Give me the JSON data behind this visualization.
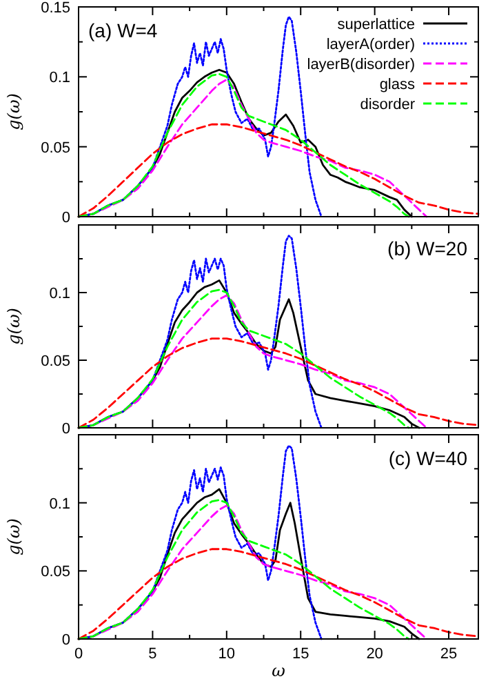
{
  "chart_data": [
    {
      "type": "line",
      "ylabel": "g(ω)",
      "annotations": [
        "(a) W=4"
      ],
      "xlim": [
        0,
        27
      ],
      "ylim": [
        0,
        0.15
      ],
      "xticks": [
        0,
        {
          "value": 2.5,
          "label": null
        },
        5,
        {
          "value": 7.5,
          "label": null
        },
        10,
        {
          "value": 12.5,
          "label": null
        },
        15,
        {
          "value": 17.5,
          "label": null
        },
        20,
        {
          "value": 22.5,
          "label": null
        },
        25
      ],
      "yticks": [
        0,
        {
          "value": 0.025,
          "label": null
        },
        0.05,
        {
          "value": 0.075,
          "label": null
        },
        0.1,
        {
          "value": 0.125,
          "label": null
        },
        0.15
      ],
      "tick_labels": "y",
      "grid": false,
      "legend": "top right",
      "marker": "none",
      "series": [
        {
          "name": "superlattice",
          "color": "#000000",
          "line_style": "solid",
          "x": [
            0,
            1,
            2,
            3,
            4,
            5,
            5.5,
            6,
            6.5,
            7,
            7.5,
            8,
            8.5,
            9,
            9.5,
            10,
            10.5,
            11,
            11.5,
            12,
            12.5,
            13,
            13.5,
            14,
            14.5,
            15,
            15.5,
            16,
            16.5,
            17,
            17.5,
            18,
            19,
            20,
            21,
            21.5,
            22,
            22.5
          ],
          "values": [
            0,
            0.002,
            0.008,
            0.012,
            0.022,
            0.035,
            0.045,
            0.06,
            0.075,
            0.085,
            0.09,
            0.096,
            0.1,
            0.103,
            0.105,
            0.103,
            0.095,
            0.082,
            0.07,
            0.063,
            0.058,
            0.06,
            0.068,
            0.073,
            0.065,
            0.053,
            0.055,
            0.05,
            0.037,
            0.03,
            0.028,
            0.025,
            0.021,
            0.019,
            0.014,
            0.012,
            0.005,
            0
          ]
        },
        {
          "name": "layerA(order)",
          "color": "#0000ff",
          "line_style": "dotted",
          "x": [
            0,
            1,
            2,
            3,
            4,
            5,
            5.5,
            6,
            6.3,
            6.7,
            7,
            7.2,
            7.4,
            7.6,
            7.8,
            8,
            8.2,
            8.4,
            8.6,
            8.8,
            9,
            9.2,
            9.4,
            9.6,
            9.8,
            10,
            10.3,
            10.6,
            11,
            11.4,
            11.8,
            12.2,
            12.6,
            12.8,
            13,
            13.2,
            13.5,
            13.8,
            14,
            14.2,
            14.4,
            14.7,
            15,
            15.3,
            15.6,
            16,
            16.4
          ],
          "values": [
            0,
            0.002,
            0.008,
            0.012,
            0.022,
            0.035,
            0.05,
            0.065,
            0.08,
            0.095,
            0.1,
            0.107,
            0.1,
            0.115,
            0.124,
            0.11,
            0.117,
            0.108,
            0.125,
            0.115,
            0.12,
            0.125,
            0.117,
            0.127,
            0.12,
            0.105,
            0.088,
            0.075,
            0.067,
            0.07,
            0.062,
            0.063,
            0.055,
            0.043,
            0.05,
            0.065,
            0.09,
            0.12,
            0.137,
            0.143,
            0.14,
            0.118,
            0.09,
            0.06,
            0.032,
            0.012,
            0
          ]
        },
        {
          "name": "layerB(disorder)",
          "color": "#ff00ff",
          "line_style": "dashed",
          "x": [
            0,
            1,
            2,
            3,
            4,
            5,
            6,
            6.5,
            7,
            8,
            9,
            9.5,
            10,
            10.5,
            11,
            11.5,
            12,
            12.5,
            13,
            14,
            15,
            16,
            17,
            18,
            19,
            20,
            21,
            22,
            23,
            23.5
          ],
          "values": [
            0,
            0.002,
            0.007,
            0.012,
            0.02,
            0.033,
            0.05,
            0.058,
            0.066,
            0.078,
            0.09,
            0.095,
            0.098,
            0.092,
            0.08,
            0.07,
            0.06,
            0.055,
            0.053,
            0.05,
            0.047,
            0.043,
            0.04,
            0.035,
            0.033,
            0.03,
            0.025,
            0.015,
            0.005,
            0
          ]
        },
        {
          "name": "glass",
          "color": "#ff0000",
          "line_style": "dashed",
          "x": [
            0,
            1,
            2,
            3,
            4,
            5,
            6,
            7,
            8,
            9,
            10,
            11,
            12,
            13,
            14,
            15,
            16,
            17,
            18,
            19,
            20,
            21,
            22,
            23,
            24,
            25,
            26,
            27
          ],
          "values": [
            0,
            0.006,
            0.015,
            0.025,
            0.035,
            0.045,
            0.053,
            0.059,
            0.063,
            0.066,
            0.066,
            0.064,
            0.061,
            0.058,
            0.055,
            0.051,
            0.046,
            0.041,
            0.036,
            0.032,
            0.027,
            0.021,
            0.015,
            0.01,
            0.008,
            0.005,
            0.003,
            0.002
          ]
        },
        {
          "name": "disorder",
          "color": "#00ff00",
          "line_style": "dashed",
          "x": [
            0,
            1,
            2,
            3,
            4,
            5,
            6,
            7,
            8,
            9,
            9.5,
            10,
            10.5,
            11,
            11.5,
            12,
            12.5,
            13,
            14,
            15,
            16,
            17,
            18,
            19,
            20,
            21,
            21.5,
            22,
            22.3
          ],
          "values": [
            0,
            0.002,
            0.008,
            0.012,
            0.022,
            0.036,
            0.06,
            0.08,
            0.093,
            0.101,
            0.102,
            0.1,
            0.09,
            0.078,
            0.072,
            0.07,
            0.068,
            0.066,
            0.062,
            0.055,
            0.046,
            0.037,
            0.03,
            0.023,
            0.017,
            0.011,
            0.007,
            0.002,
            0
          ]
        }
      ]
    },
    {
      "type": "line",
      "ylabel": "g(ω)",
      "annotations": [
        "(b) W=20"
      ],
      "xlim": [
        0,
        27
      ],
      "ylim": [
        0,
        0.15
      ],
      "xticks": [
        0,
        {
          "value": 2.5,
          "label": null
        },
        5,
        {
          "value": 7.5,
          "label": null
        },
        10,
        {
          "value": 12.5,
          "label": null
        },
        15,
        {
          "value": 17.5,
          "label": null
        },
        20,
        {
          "value": 22.5,
          "label": null
        },
        25
      ],
      "yticks": [
        0,
        {
          "value": 0.025,
          "label": null
        },
        0.05,
        {
          "value": 0.075,
          "label": null
        },
        0.1,
        {
          "value": 0.125,
          "label": null
        }
      ],
      "tick_labels": "y",
      "grid": false,
      "marker": "none",
      "series": [
        {
          "color": "#000000",
          "line_style": "solid",
          "x": [
            0,
            1,
            2,
            3,
            4,
            5,
            5.5,
            6,
            6.5,
            7,
            7.5,
            8,
            8.5,
            9,
            9.5,
            10,
            10.5,
            11,
            11.5,
            12,
            12.5,
            13,
            13.3,
            13.6,
            14,
            14.2,
            14.5,
            15,
            15.5,
            16,
            17,
            18,
            19,
            20,
            21,
            22,
            22.5,
            23
          ],
          "values": [
            0,
            0.002,
            0.008,
            0.012,
            0.022,
            0.035,
            0.045,
            0.062,
            0.078,
            0.087,
            0.093,
            0.1,
            0.104,
            0.106,
            0.109,
            0.1,
            0.085,
            0.077,
            0.07,
            0.062,
            0.057,
            0.055,
            0.06,
            0.08,
            0.09,
            0.095,
            0.085,
            0.06,
            0.035,
            0.025,
            0.022,
            0.02,
            0.018,
            0.016,
            0.013,
            0.008,
            0.003,
            0
          ]
        },
        {
          "color": "#0000ff",
          "line_style": "dotted",
          "x": [
            0,
            1,
            2,
            3,
            4,
            5,
            5.5,
            6,
            6.3,
            6.7,
            7,
            7.2,
            7.4,
            7.6,
            7.8,
            8,
            8.2,
            8.4,
            8.6,
            8.8,
            9,
            9.2,
            9.4,
            9.6,
            9.8,
            10,
            10.3,
            10.6,
            11,
            11.4,
            11.8,
            12.2,
            12.6,
            12.8,
            13,
            13.2,
            13.5,
            13.8,
            14,
            14.2,
            14.4,
            14.7,
            15,
            15.3,
            15.6,
            16,
            16.4
          ],
          "values": [
            0,
            0.002,
            0.008,
            0.012,
            0.022,
            0.035,
            0.05,
            0.065,
            0.08,
            0.095,
            0.1,
            0.108,
            0.1,
            0.116,
            0.124,
            0.11,
            0.118,
            0.108,
            0.125,
            0.115,
            0.12,
            0.125,
            0.117,
            0.125,
            0.12,
            0.103,
            0.088,
            0.075,
            0.067,
            0.07,
            0.062,
            0.063,
            0.055,
            0.043,
            0.05,
            0.065,
            0.09,
            0.12,
            0.138,
            0.142,
            0.14,
            0.118,
            0.09,
            0.06,
            0.032,
            0.012,
            0
          ]
        },
        {
          "color": "#ff00ff",
          "line_style": "dashed",
          "x": [
            0,
            1,
            2,
            3,
            4,
            5,
            6,
            6.5,
            7,
            8,
            9,
            9.5,
            10,
            10.5,
            11,
            11.5,
            12,
            12.5,
            13,
            14,
            15,
            16,
            17,
            18,
            19,
            20,
            21,
            22,
            23,
            23.5
          ],
          "values": [
            0,
            0.002,
            0.007,
            0.012,
            0.02,
            0.033,
            0.05,
            0.058,
            0.066,
            0.078,
            0.09,
            0.095,
            0.098,
            0.092,
            0.08,
            0.07,
            0.06,
            0.055,
            0.053,
            0.05,
            0.047,
            0.043,
            0.04,
            0.035,
            0.033,
            0.03,
            0.025,
            0.015,
            0.005,
            0
          ]
        },
        {
          "color": "#ff0000",
          "line_style": "dashed",
          "x": [
            0,
            1,
            2,
            3,
            4,
            5,
            6,
            7,
            8,
            9,
            10,
            11,
            12,
            13,
            14,
            15,
            16,
            17,
            18,
            19,
            20,
            21,
            22,
            23,
            24,
            25,
            26,
            27
          ],
          "values": [
            0,
            0.006,
            0.015,
            0.025,
            0.035,
            0.045,
            0.053,
            0.059,
            0.063,
            0.066,
            0.066,
            0.064,
            0.061,
            0.058,
            0.055,
            0.051,
            0.046,
            0.041,
            0.036,
            0.032,
            0.027,
            0.021,
            0.015,
            0.01,
            0.008,
            0.005,
            0.003,
            0.002
          ]
        },
        {
          "color": "#00ff00",
          "line_style": "dashed",
          "x": [
            0,
            1,
            2,
            3,
            4,
            5,
            6,
            7,
            8,
            9,
            9.5,
            10,
            10.5,
            11,
            11.5,
            12,
            12.5,
            13,
            14,
            15,
            16,
            17,
            18,
            19,
            20,
            21,
            21.5,
            22,
            22.3
          ],
          "values": [
            0,
            0.002,
            0.008,
            0.012,
            0.022,
            0.036,
            0.06,
            0.08,
            0.093,
            0.101,
            0.102,
            0.1,
            0.09,
            0.078,
            0.072,
            0.07,
            0.068,
            0.066,
            0.062,
            0.055,
            0.046,
            0.037,
            0.03,
            0.023,
            0.017,
            0.011,
            0.007,
            0.002,
            0
          ]
        }
      ]
    },
    {
      "type": "line",
      "xlabel": "ω",
      "ylabel": "g(ω)",
      "annotations": [
        "(c) W=40"
      ],
      "xlim": [
        0,
        27
      ],
      "ylim": [
        0,
        0.15
      ],
      "xticks": [
        0,
        {
          "value": 2.5,
          "label": null
        },
        5,
        {
          "value": 7.5,
          "label": null
        },
        10,
        {
          "value": 12.5,
          "label": null
        },
        15,
        {
          "value": 17.5,
          "label": null
        },
        20,
        {
          "value": 22.5,
          "label": null
        },
        25
      ],
      "yticks": [
        0,
        {
          "value": 0.025,
          "label": null
        },
        0.05,
        {
          "value": 0.075,
          "label": null
        },
        0.1,
        {
          "value": 0.125,
          "label": null
        }
      ],
      "grid": false,
      "marker": "none",
      "series": [
        {
          "color": "#000000",
          "line_style": "solid",
          "x": [
            0,
            1,
            2,
            3,
            4,
            5,
            5.5,
            6,
            6.5,
            7,
            7.5,
            8,
            8.5,
            9,
            9.5,
            10,
            10.5,
            11,
            11.5,
            12,
            12.5,
            13,
            13.3,
            13.6,
            14,
            14.3,
            14.6,
            15,
            15.5,
            16,
            17,
            18,
            19,
            20,
            21,
            22,
            22.5,
            23
          ],
          "values": [
            0,
            0.002,
            0.008,
            0.012,
            0.022,
            0.035,
            0.045,
            0.062,
            0.078,
            0.088,
            0.094,
            0.1,
            0.104,
            0.106,
            0.11,
            0.1,
            0.085,
            0.077,
            0.07,
            0.062,
            0.055,
            0.053,
            0.058,
            0.08,
            0.092,
            0.1,
            0.085,
            0.06,
            0.03,
            0.02,
            0.018,
            0.017,
            0.016,
            0.015,
            0.013,
            0.009,
            0.004,
            0
          ]
        },
        {
          "color": "#0000ff",
          "line_style": "dotted",
          "x": [
            0,
            1,
            2,
            3,
            4,
            5,
            5.5,
            6,
            6.3,
            6.7,
            7,
            7.2,
            7.4,
            7.6,
            7.8,
            8,
            8.2,
            8.4,
            8.6,
            8.8,
            9,
            9.2,
            9.4,
            9.6,
            9.8,
            10,
            10.3,
            10.6,
            11,
            11.4,
            11.8,
            12.2,
            12.6,
            12.8,
            13,
            13.2,
            13.5,
            13.8,
            14,
            14.2,
            14.4,
            14.7,
            15,
            15.3,
            15.6,
            16,
            16.4
          ],
          "values": [
            0,
            0.002,
            0.008,
            0.012,
            0.022,
            0.035,
            0.05,
            0.065,
            0.08,
            0.095,
            0.1,
            0.108,
            0.1,
            0.116,
            0.124,
            0.11,
            0.118,
            0.108,
            0.125,
            0.115,
            0.12,
            0.125,
            0.117,
            0.126,
            0.12,
            0.103,
            0.088,
            0.075,
            0.067,
            0.07,
            0.062,
            0.063,
            0.055,
            0.043,
            0.05,
            0.065,
            0.09,
            0.12,
            0.138,
            0.142,
            0.14,
            0.118,
            0.09,
            0.06,
            0.032,
            0.012,
            0
          ]
        },
        {
          "color": "#ff00ff",
          "line_style": "dashed",
          "x": [
            0,
            1,
            2,
            3,
            4,
            5,
            6,
            6.5,
            7,
            8,
            9,
            9.5,
            10,
            10.5,
            11,
            11.5,
            12,
            12.5,
            13,
            14,
            15,
            16,
            17,
            18,
            19,
            20,
            21,
            22,
            23,
            23.5
          ],
          "values": [
            0,
            0.002,
            0.007,
            0.012,
            0.02,
            0.033,
            0.05,
            0.058,
            0.066,
            0.078,
            0.09,
            0.095,
            0.098,
            0.092,
            0.08,
            0.07,
            0.06,
            0.055,
            0.053,
            0.05,
            0.047,
            0.043,
            0.04,
            0.035,
            0.033,
            0.03,
            0.025,
            0.015,
            0.005,
            0
          ]
        },
        {
          "color": "#ff0000",
          "line_style": "dashed",
          "x": [
            0,
            1,
            2,
            3,
            4,
            5,
            6,
            7,
            8,
            9,
            10,
            11,
            12,
            13,
            14,
            15,
            16,
            17,
            18,
            19,
            20,
            21,
            22,
            23,
            24,
            25,
            26,
            27
          ],
          "values": [
            0,
            0.006,
            0.015,
            0.025,
            0.035,
            0.045,
            0.053,
            0.059,
            0.063,
            0.066,
            0.066,
            0.064,
            0.061,
            0.058,
            0.055,
            0.051,
            0.046,
            0.041,
            0.036,
            0.032,
            0.027,
            0.021,
            0.015,
            0.01,
            0.008,
            0.005,
            0.003,
            0.002
          ]
        },
        {
          "color": "#00ff00",
          "line_style": "dashed",
          "x": [
            0,
            1,
            2,
            3,
            4,
            5,
            6,
            7,
            8,
            9,
            9.5,
            10,
            10.5,
            11,
            11.5,
            12,
            12.5,
            13,
            14,
            15,
            16,
            17,
            18,
            19,
            20,
            21,
            21.5,
            22,
            22.3
          ],
          "values": [
            0,
            0.002,
            0.008,
            0.012,
            0.022,
            0.036,
            0.06,
            0.08,
            0.093,
            0.101,
            0.102,
            0.1,
            0.09,
            0.078,
            0.072,
            0.07,
            0.068,
            0.066,
            0.062,
            0.055,
            0.046,
            0.037,
            0.03,
            0.023,
            0.017,
            0.011,
            0.007,
            0.002,
            0
          ]
        }
      ]
    }
  ]
}
